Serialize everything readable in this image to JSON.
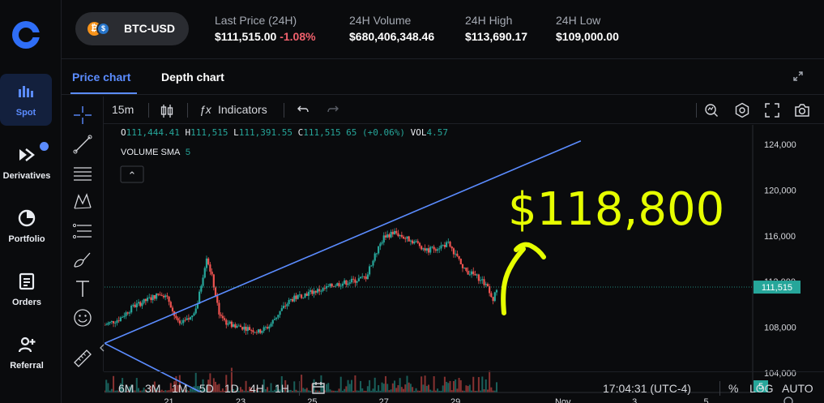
{
  "nav": {
    "items": [
      {
        "label": "Spot",
        "icon": "bars-chart-icon"
      },
      {
        "label": "Derivatives",
        "icon": "derivatives-icon"
      },
      {
        "label": "Portfolio",
        "icon": "pie-chart-icon"
      },
      {
        "label": "Orders",
        "icon": "document-icon"
      },
      {
        "label": "Referral",
        "icon": "add-user-icon"
      }
    ]
  },
  "header": {
    "pair": "BTC-USD",
    "coin_a": "₿",
    "coin_b": "$",
    "stats": [
      {
        "label": "Last Price (24H)",
        "value": "$111,515.00",
        "change": "-1.08%"
      },
      {
        "label": "24H Volume",
        "value": "$680,406,348.46"
      },
      {
        "label": "24H High",
        "value": "$113,690.17"
      },
      {
        "label": "24H Low",
        "value": "$109,000.00"
      }
    ]
  },
  "tabs": [
    "Price chart",
    "Depth chart"
  ],
  "toolbar": {
    "interval": "15m",
    "indicators_label": "Indicators",
    "fx": "ƒx"
  },
  "legend": {
    "o_label": "O",
    "o_value": "111,444.41",
    "h_label": "H",
    "h_value": "111,515",
    "l_label": "L",
    "l_value": "111,391.55",
    "c_label": "C",
    "c_value": "111,515 65 (+0.06%)",
    "vol_label": "VOL",
    "vol_value": "4.57",
    "sma_label": "VOLUME SMA",
    "sma_value": "5",
    "collapse_glyph": "⌃"
  },
  "annotation": "$118,800",
  "bottombar": {
    "ranges": [
      "6M",
      "3M",
      "1M",
      "5D",
      "1D",
      "4H",
      "1H"
    ],
    "time": "17:04:31 (UTC-4)",
    "percent": "%",
    "log": "LOG",
    "auto": "AUTO"
  },
  "colors": {
    "accent": "#5b8cff",
    "up": "#26a69a",
    "down": "#ef5350",
    "annotation": "#e6ff00",
    "trendline": "#5b8cff"
  },
  "chart_data": {
    "type": "candlestick",
    "y_ticks": [
      "124,000",
      "120,000",
      "116,000",
      "112,000",
      "108,000",
      "104,000"
    ],
    "y_tick_values": [
      124000,
      120000,
      116000,
      112000,
      108000,
      104000
    ],
    "ylim": [
      102300,
      125700
    ],
    "x_ticks": [
      "21",
      "23",
      "25",
      "27",
      "29",
      "Nov",
      "3",
      "5"
    ],
    "x_tick_days": [
      21,
      23,
      25,
      27,
      29,
      32,
      34,
      36
    ],
    "xlim": [
      19.2,
      37.3
    ],
    "last_price_label": "111,515",
    "last_price": 111515,
    "volume_label": "5",
    "price_path": [
      [
        19.2,
        108200
      ],
      [
        19.6,
        108700
      ],
      [
        20.0,
        109800
      ],
      [
        20.4,
        110400
      ],
      [
        20.8,
        111000
      ],
      [
        21.0,
        110300
      ],
      [
        21.2,
        108600
      ],
      [
        21.3,
        108200
      ],
      [
        21.6,
        108800
      ],
      [
        21.8,
        110100
      ],
      [
        22.05,
        114200
      ],
      [
        22.2,
        112400
      ],
      [
        22.4,
        109300
      ],
      [
        22.6,
        108400
      ],
      [
        22.9,
        108100
      ],
      [
        23.2,
        107900
      ],
      [
        23.5,
        107600
      ],
      [
        23.8,
        108100
      ],
      [
        24.1,
        109400
      ],
      [
        24.4,
        110400
      ],
      [
        24.7,
        110800
      ],
      [
        25.0,
        111100
      ],
      [
        25.3,
        111300
      ],
      [
        25.6,
        111700
      ],
      [
        25.9,
        111900
      ],
      [
        26.2,
        112100
      ],
      [
        26.5,
        112400
      ],
      [
        26.8,
        114600
      ],
      [
        27.0,
        115900
      ],
      [
        27.3,
        116300
      ],
      [
        27.6,
        115800
      ],
      [
        27.9,
        115400
      ],
      [
        28.2,
        114700
      ],
      [
        28.5,
        115000
      ],
      [
        28.8,
        115300
      ],
      [
        29.0,
        114400
      ],
      [
        29.2,
        113100
      ],
      [
        29.5,
        112600
      ],
      [
        29.7,
        112200
      ],
      [
        29.9,
        111600
      ],
      [
        30.05,
        110500
      ],
      [
        30.2,
        111500
      ]
    ],
    "trendlines": [
      {
        "from": [
          19.2,
          106600
        ],
        "to": [
          32.5,
          124300
        ]
      },
      {
        "from": [
          19.2,
          106600
        ],
        "to": [
          21.9,
          102300
        ]
      }
    ]
  }
}
